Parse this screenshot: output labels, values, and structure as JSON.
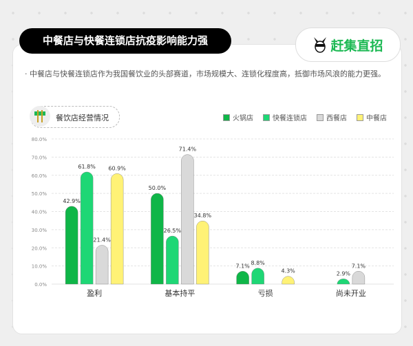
{
  "header": {
    "title": "中餐店与快餐连锁店抗疫影响能力强",
    "logo_text": "赶集直招"
  },
  "description": "· 中餐店与快餐连锁店作为我国餐饮业的头部赛道，市场规模大、连锁化程度高，抵御市场风浪的能力更强。",
  "section": {
    "label": "餐饮店经营情况",
    "icon": "chopsticks-bowl-icon"
  },
  "chart_data": {
    "type": "bar",
    "categories": [
      "盈利",
      "基本持平",
      "亏损",
      "尚未开业"
    ],
    "series": [
      {
        "name": "火锅店",
        "color": "#0fb648",
        "values": [
          42.9,
          50.0,
          7.1,
          null
        ]
      },
      {
        "name": "快餐连锁店",
        "color": "#1ed775",
        "values": [
          61.8,
          26.5,
          8.8,
          2.9
        ]
      },
      {
        "name": "西餐店",
        "color": "#d9d9d9",
        "values": [
          21.4,
          71.4,
          null,
          7.1
        ]
      },
      {
        "name": "中餐店",
        "color": "#fff276",
        "values": [
          60.9,
          34.8,
          4.3,
          null
        ]
      }
    ],
    "ylim": [
      0,
      80
    ],
    "yticks": [
      "0.0%",
      "10.0%",
      "20.0%",
      "30.0%",
      "40.0%",
      "50.0%",
      "60.0%",
      "70.0%",
      "80.0%"
    ],
    "value_format": "percent",
    "grid": true,
    "legend": "top-right"
  }
}
